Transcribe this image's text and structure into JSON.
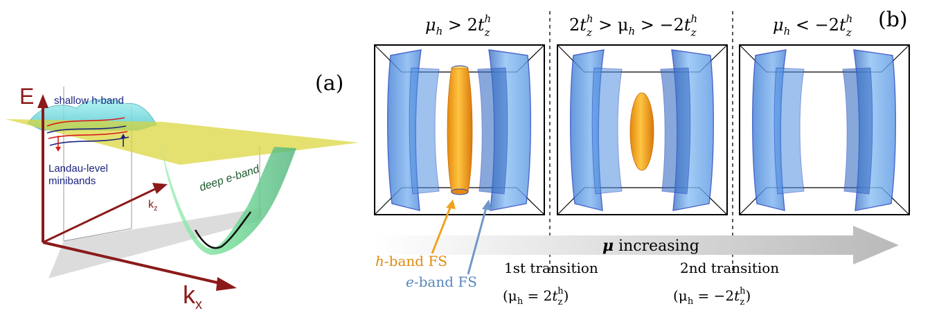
{
  "panel_a": {
    "label": "(a)",
    "axis_e": "E",
    "axis_kx": "k",
    "axis_kx_sub": "x",
    "axis_kz": "k",
    "axis_kz_sub": "z",
    "shallow_band": "shallow h-band",
    "landau_line1": "Landau-level",
    "landau_line2": "minibands",
    "deep_band": "deep e-band"
  },
  "panel_b": {
    "label": "(b)",
    "cond1": {
      "a": "μ",
      "a_sub": "h",
      "rel": " > 2",
      "b": "t",
      "b_sub": "z",
      "b_sup": "h"
    },
    "cond2": {
      "pre": "2",
      "b": "t",
      "b_sub": "z",
      "b_sup": "h",
      "mid": " > μ",
      "mid_sub": "h",
      "rel": " > −2",
      "c": "t",
      "c_sub": "z",
      "c_sup": "h"
    },
    "cond3": {
      "a": "μ",
      "a_sub": "h",
      "rel": " < −2",
      "b": "t",
      "b_sub": "z",
      "b_sup": "h"
    },
    "arrow_label_mu": "μ",
    "arrow_label_rest": " increasing",
    "hband_label_h": "h",
    "hband_label_rest": "-band FS",
    "eband_label_e": "e",
    "eband_label_rest": "-band FS",
    "transition1": "1st transition",
    "transition1_cond": {
      "open": "(μ",
      "sub": "h",
      "eq": " = 2",
      "t": "t",
      "t_sub": "z",
      "t_sup": "h",
      "close": ")"
    },
    "transition2": "2nd transition",
    "transition2_cond": {
      "open": "(μ",
      "sub": "h",
      "eq": " = −2",
      "t": "t",
      "t_sub": "z",
      "t_sup": "h",
      "close": ")"
    }
  },
  "colors": {
    "axis_red": "#8b1a1a",
    "e_band_blue": "#5a9be8",
    "h_band_orange": "#f0a21e",
    "green_band": "#7ee3a0",
    "cyan_band": "#7fe3e6",
    "plane_yellow": "#d9d53a",
    "label_blue": "#1a237e"
  }
}
